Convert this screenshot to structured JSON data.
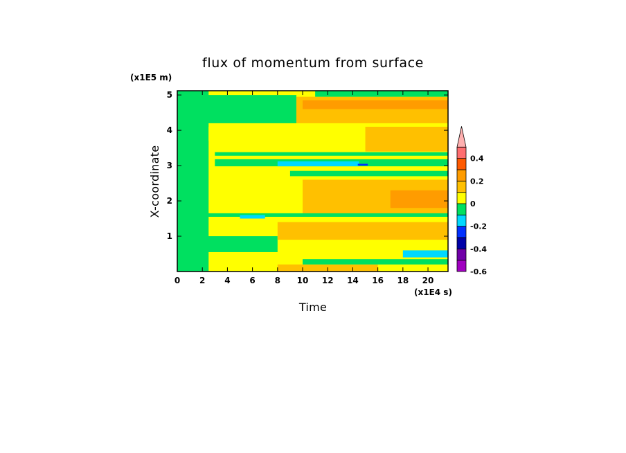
{
  "chart_data": {
    "type": "heatmap",
    "title": "flux of momentum from surface",
    "xlabel": "Time",
    "ylabel": "X-coordinate",
    "x_unit": "(x1E4 s)",
    "y_unit": "(x1E5 m)",
    "xlim": [
      0,
      21.6
    ],
    "ylim": [
      0,
      5.12
    ],
    "x_ticks": [
      "0",
      "2",
      "4",
      "6",
      "8",
      "10",
      "12",
      "14",
      "16",
      "18",
      "20"
    ],
    "y_ticks": [
      "1",
      "2",
      "3",
      "4",
      "5"
    ],
    "colorbar": {
      "levels": [
        -0.6,
        -0.5,
        -0.4,
        -0.3,
        -0.2,
        -0.1,
        0,
        0.1,
        0.2,
        0.3,
        0.4,
        0.45,
        0.5
      ],
      "colors": [
        "#a000c0",
        "#7000a8",
        "#0000a8",
        "#0030ff",
        "#00d8ff",
        "#00e060",
        "#ffff00",
        "#ffc000",
        "#ff9c00",
        "#ff5a00",
        "#ff6e70",
        "#ffb0b0"
      ],
      "tick_labels": [
        "-0.6",
        "-0.4",
        "-0.2",
        "0",
        "0.2",
        "0.4"
      ],
      "extend": "max"
    },
    "regions": [
      {
        "t": [
          0,
          21.6
        ],
        "x": [
          0,
          5.12
        ],
        "value": 0.05
      },
      {
        "t": [
          0,
          2.5
        ],
        "x": [
          0,
          5.12
        ],
        "value": -0.05
      },
      {
        "t": [
          2,
          9.5
        ],
        "x": [
          4.2,
          5.0
        ],
        "value": -0.05
      },
      {
        "t": [
          9.5,
          21.6
        ],
        "x": [
          4.2,
          4.95
        ],
        "value": 0.15
      },
      {
        "t": [
          10,
          21.6
        ],
        "x": [
          4.6,
          4.85
        ],
        "value": 0.25
      },
      {
        "t": [
          11,
          21.6
        ],
        "x": [
          4.95,
          5.12
        ],
        "value": -0.05
      },
      {
        "t": [
          3,
          21.6
        ],
        "x": [
          3.28,
          3.38
        ],
        "value": -0.05
      },
      {
        "t": [
          3,
          21.6
        ],
        "x": [
          2.98,
          3.18
        ],
        "value": -0.05
      },
      {
        "t": [
          8,
          14.5
        ],
        "x": [
          2.98,
          3.12
        ],
        "value": -0.15
      },
      {
        "t": [
          14.4,
          15.2
        ],
        "x": [
          3.0,
          3.05
        ],
        "value": -0.25
      },
      {
        "t": [
          15,
          21.6
        ],
        "x": [
          3.4,
          4.1
        ],
        "value": 0.15
      },
      {
        "t": [
          2.5,
          8
        ],
        "x": [
          3.7,
          4.1
        ],
        "value": 0.05
      },
      {
        "t": [
          9,
          21.6
        ],
        "x": [
          2.7,
          2.85
        ],
        "value": -0.05
      },
      {
        "t": [
          10,
          21.6
        ],
        "x": [
          1.6,
          2.6
        ],
        "value": 0.15
      },
      {
        "t": [
          17,
          21.6
        ],
        "x": [
          1.8,
          2.3
        ],
        "value": 0.25
      },
      {
        "t": [
          2,
          21.6
        ],
        "x": [
          1.55,
          1.65
        ],
        "value": -0.05
      },
      {
        "t": [
          5,
          7
        ],
        "x": [
          1.5,
          1.6
        ],
        "value": -0.15
      },
      {
        "t": [
          2,
          8
        ],
        "x": [
          0.55,
          1.0
        ],
        "value": -0.05
      },
      {
        "t": [
          8,
          21.6
        ],
        "x": [
          0.9,
          1.4
        ],
        "value": 0.15
      },
      {
        "t": [
          8,
          16
        ],
        "x": [
          0.0,
          0.2
        ],
        "value": 0.15
      },
      {
        "t": [
          10,
          21.6
        ],
        "x": [
          0.2,
          0.35
        ],
        "value": -0.05
      },
      {
        "t": [
          18,
          21.6
        ],
        "x": [
          0.4,
          0.6
        ],
        "value": -0.15
      }
    ]
  }
}
